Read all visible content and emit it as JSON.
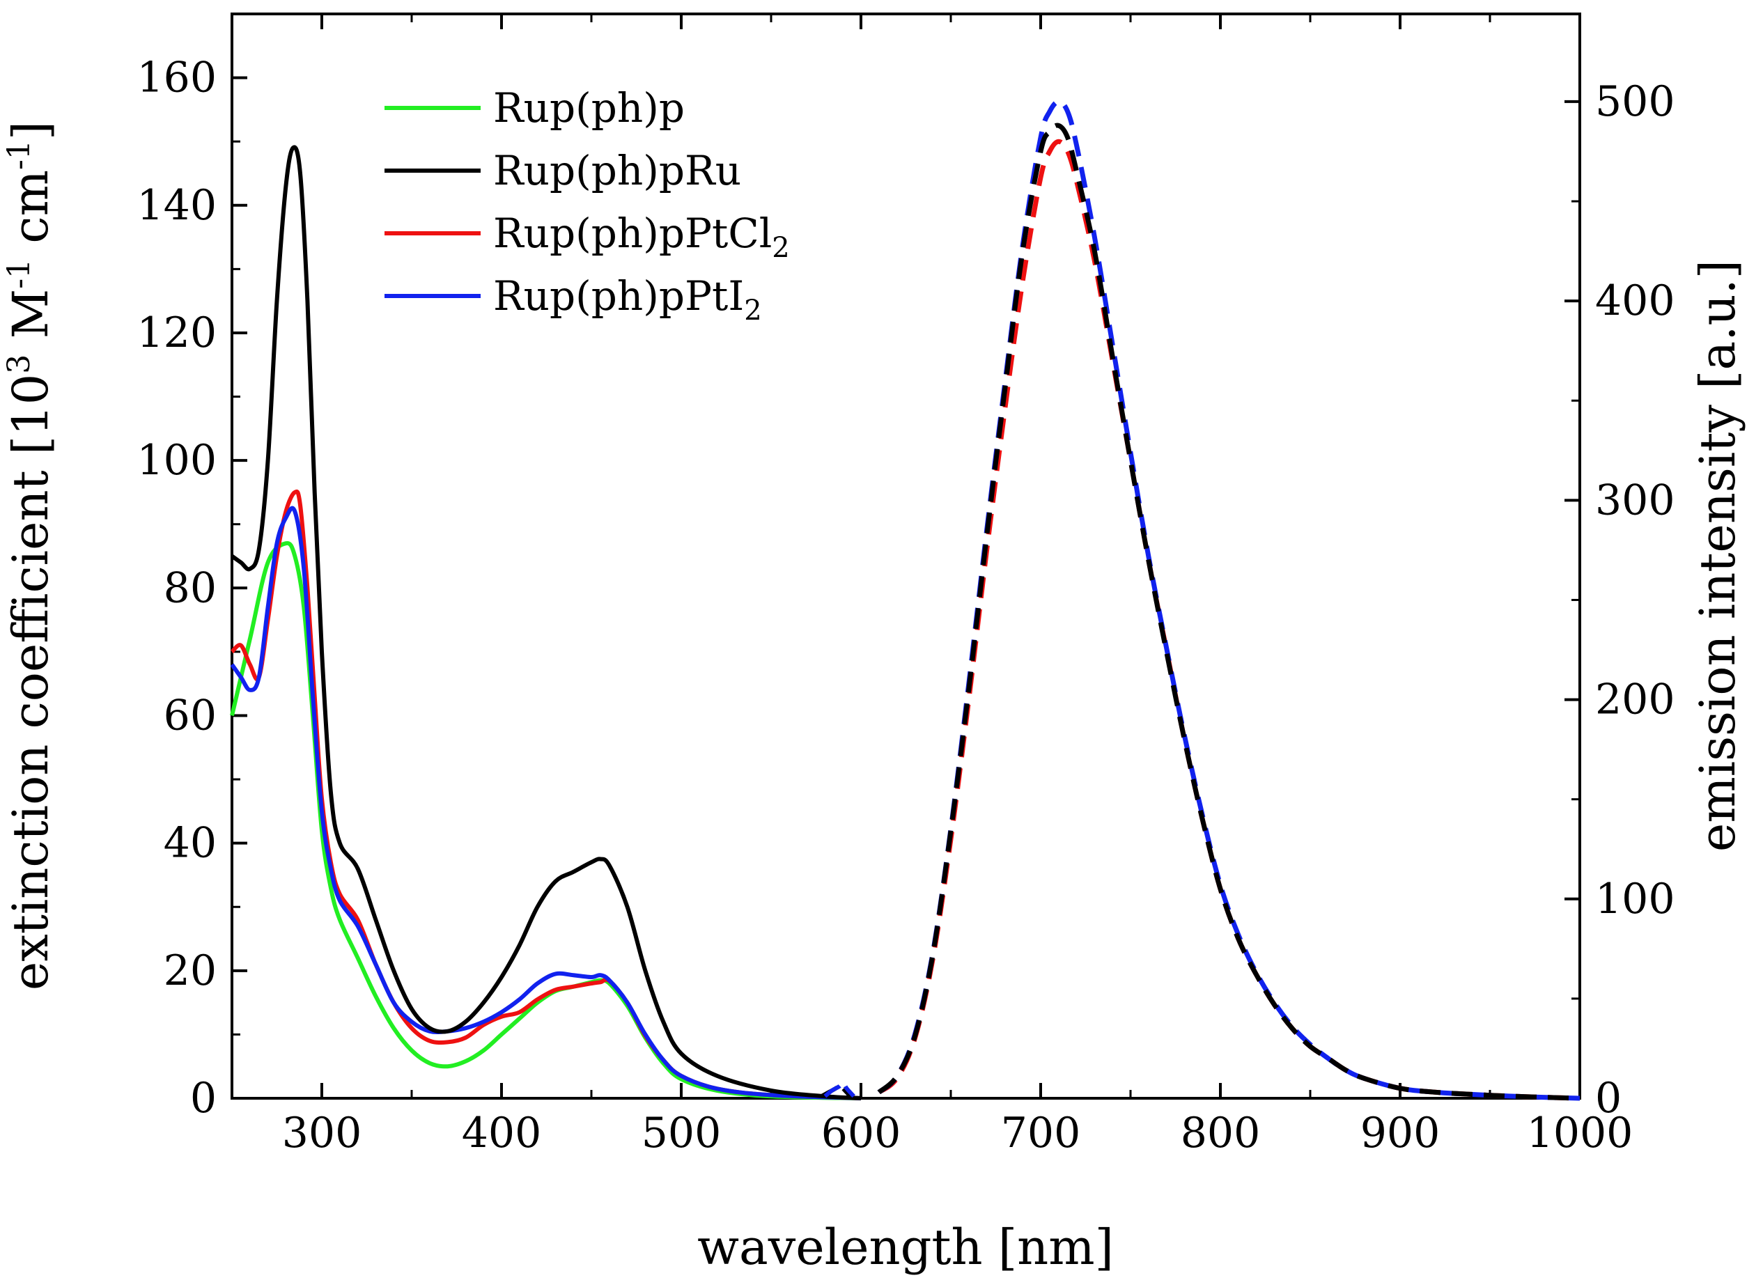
{
  "chart_data": {
    "type": "line",
    "xlabel": "wavelength [nm]",
    "ylabel": {
      "main": "extinction coefficient [10",
      "sup1": "3",
      "mid": " M",
      "sup2": "-1",
      "mid2": " cm",
      "sup3": "-1",
      "end": "]"
    },
    "y2label": "emission intensity [a.u.]",
    "xlim": [
      250,
      1000
    ],
    "ylim": [
      0,
      170
    ],
    "y2lim": [
      0,
      544
    ],
    "x_ticks": [
      300,
      400,
      500,
      600,
      700,
      800,
      900,
      1000
    ],
    "y_ticks": [
      0,
      20,
      40,
      60,
      80,
      100,
      120,
      140,
      160
    ],
    "y2_ticks": [
      0,
      100,
      200,
      300,
      400,
      500
    ],
    "grid": false,
    "legend_position": "top-left",
    "legend": [
      {
        "base": "Rup(ph)p",
        "sub": "",
        "color": "#22ee22"
      },
      {
        "base": "Rup(ph)pRu",
        "sub": "",
        "color": "#000000"
      },
      {
        "base": "Rup(ph)pPtCl",
        "sub": "2",
        "color": "#ee1111"
      },
      {
        "base": "Rup(ph)pPtI",
        "sub": "2",
        "color": "#1122ee"
      }
    ],
    "absorption_series": [
      {
        "name": "Rup(ph)p",
        "color": "#22ee22",
        "x": [
          250,
          260,
          270,
          280,
          285,
          290,
          295,
          300,
          305,
          310,
          320,
          330,
          340,
          350,
          360,
          370,
          380,
          390,
          400,
          410,
          420,
          430,
          440,
          450,
          455,
          460,
          470,
          480,
          490,
          500,
          520,
          550,
          600
        ],
        "y": [
          60,
          72,
          84,
          87,
          85,
          77,
          60,
          42,
          33,
          28,
          22,
          16,
          11,
          7.5,
          5.5,
          5,
          5.8,
          7.5,
          10,
          12.5,
          15,
          16.8,
          17.5,
          18.2,
          18.5,
          18,
          14.5,
          9.5,
          5.5,
          3,
          1.2,
          0.3,
          0
        ]
      },
      {
        "name": "Rup(ph)pRu",
        "color": "#000000",
        "x": [
          250,
          255,
          260,
          265,
          270,
          275,
          280,
          284,
          288,
          292,
          296,
          300,
          305,
          310,
          320,
          330,
          340,
          350,
          360,
          370,
          380,
          390,
          400,
          410,
          420,
          430,
          440,
          450,
          455,
          460,
          470,
          480,
          490,
          500,
          520,
          550,
          580,
          600
        ],
        "y": [
          85,
          84,
          83,
          86,
          100,
          125,
          143,
          149,
          145,
          125,
          95,
          70,
          48,
          40,
          36,
          28,
          20,
          14,
          11,
          10.5,
          12,
          15,
          19,
          24,
          30,
          34,
          35.5,
          37,
          37.5,
          36.5,
          30,
          20,
          12,
          7,
          3.5,
          1.2,
          0.3,
          0
        ]
      },
      {
        "name": "Rup(ph)pPtCl2",
        "color": "#ee1111",
        "x": [
          250,
          255,
          260,
          265,
          270,
          275,
          280,
          285,
          288,
          292,
          296,
          300,
          305,
          310,
          320,
          330,
          340,
          350,
          360,
          370,
          380,
          390,
          400,
          410,
          420,
          430,
          440,
          450,
          455,
          460,
          470,
          480,
          490,
          500,
          520,
          550,
          600
        ],
        "y": [
          70,
          71,
          68,
          66,
          75,
          85,
          92,
          95,
          93,
          80,
          63,
          47,
          37,
          32,
          28,
          21,
          15,
          11,
          9,
          8.8,
          9.5,
          11.5,
          12.8,
          13.5,
          15.5,
          17,
          17.5,
          18,
          18.2,
          18.4,
          15,
          9.8,
          6,
          3.5,
          1.5,
          0.5,
          0
        ]
      },
      {
        "name": "Rup(ph)pPtI2",
        "color": "#1122ee",
        "x": [
          250,
          255,
          260,
          265,
          270,
          275,
          280,
          285,
          290,
          295,
          300,
          305,
          310,
          320,
          330,
          340,
          350,
          360,
          370,
          380,
          390,
          400,
          410,
          420,
          430,
          440,
          450,
          455,
          460,
          470,
          480,
          490,
          500,
          520,
          550,
          600
        ],
        "y": [
          68,
          66,
          64,
          66,
          77,
          87,
          91,
          92,
          83,
          63,
          45,
          36,
          31,
          27,
          21,
          15,
          12,
          10.5,
          10.5,
          11,
          12,
          13.5,
          15.5,
          18,
          19.5,
          19.3,
          19,
          19.3,
          18.5,
          15,
          10,
          6,
          3.5,
          1.5,
          0.5,
          0
        ]
      }
    ],
    "emission_series": [
      {
        "name": "Rup(ph)pPtCl2",
        "color": "#ee1111",
        "x": [
          610,
          620,
          630,
          640,
          650,
          660,
          670,
          680,
          690,
          700,
          705,
          710,
          715,
          720,
          730,
          740,
          750,
          760,
          770,
          780,
          790,
          800,
          810,
          820,
          830,
          840,
          850,
          860,
          870,
          880,
          900,
          920,
          950,
          980,
          1000
        ],
        "y": [
          3,
          10,
          30,
          70,
          130,
          200,
          275,
          345,
          410,
          462,
          475,
          480,
          475,
          460,
          420,
          370,
          320,
          270,
          225,
          180,
          140,
          105,
          80,
          62,
          47,
          35,
          26,
          20,
          14,
          10,
          5,
          3,
          1.5,
          0.5,
          0
        ]
      },
      {
        "name": "Rup(ph)pPtI2",
        "color": "#1122ee",
        "x": [
          610,
          620,
          630,
          640,
          650,
          660,
          670,
          680,
          690,
          700,
          705,
          710,
          715,
          720,
          730,
          740,
          750,
          760,
          770,
          780,
          790,
          800,
          810,
          820,
          830,
          840,
          850,
          860,
          870,
          880,
          900,
          920,
          950,
          980,
          1000
        ],
        "y": [
          3,
          11,
          32,
          73,
          135,
          208,
          285,
          358,
          428,
          482,
          495,
          500,
          495,
          478,
          432,
          378,
          324,
          272,
          226,
          182,
          142,
          107,
          82,
          63,
          48,
          36,
          27,
          20,
          14,
          10,
          5,
          3,
          1.5,
          0.5,
          0
        ]
      },
      {
        "name": "Rup(ph)pRu",
        "color": "#000000",
        "x": [
          610,
          620,
          630,
          640,
          650,
          660,
          670,
          680,
          690,
          700,
          705,
          710,
          715,
          720,
          730,
          740,
          750,
          760,
          770,
          780,
          790,
          800,
          810,
          820,
          830,
          840,
          850,
          860,
          870,
          880,
          900,
          920,
          950,
          980,
          1000
        ],
        "y": [
          3,
          11,
          31,
          72,
          134,
          205,
          282,
          355,
          425,
          475,
          485,
          488,
          482,
          465,
          425,
          372,
          320,
          270,
          224,
          180,
          140,
          105,
          80,
          62,
          47,
          35,
          26,
          20,
          14,
          10,
          5,
          3,
          1.5,
          0.5,
          0
        ]
      }
    ],
    "small_features": [
      {
        "color": "#000000",
        "x": [
          578,
          582,
          586,
          588,
          590,
          592,
          594
        ],
        "y": [
          1,
          3,
          5,
          7,
          5,
          3,
          1
        ]
      },
      {
        "color": "#1122ee",
        "x": [
          580,
          584,
          588,
          590,
          592,
          596
        ],
        "y": [
          1,
          4,
          6,
          8,
          5,
          1
        ]
      }
    ]
  }
}
